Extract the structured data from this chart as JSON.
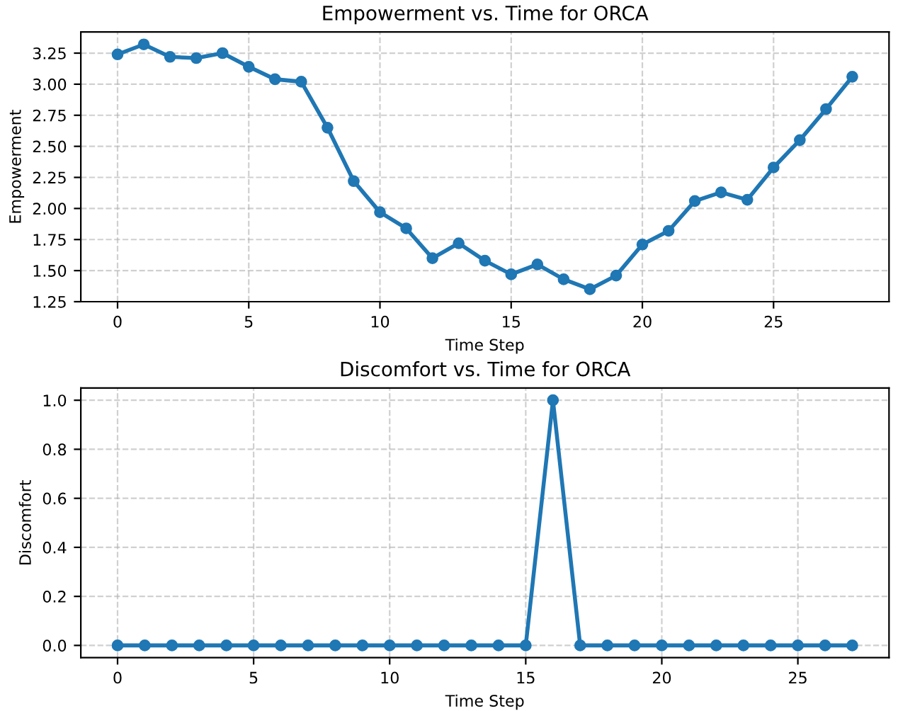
{
  "chart_data": [
    {
      "type": "line",
      "title": "Empowerment vs. Time for ORCA",
      "xlabel": "Time Step",
      "ylabel": "Empowerment",
      "x": [
        0,
        1,
        2,
        3,
        4,
        5,
        6,
        7,
        8,
        9,
        10,
        11,
        12,
        13,
        14,
        15,
        16,
        17,
        18,
        19,
        20,
        21,
        22,
        23,
        24,
        25,
        26,
        27,
        28
      ],
      "series": [
        {
          "color": "#1f77b4",
          "values": [
            3.24,
            3.32,
            3.22,
            3.21,
            3.25,
            3.14,
            3.04,
            3.02,
            2.65,
            2.22,
            1.97,
            1.84,
            1.6,
            1.72,
            1.58,
            1.47,
            1.55,
            1.43,
            1.35,
            1.46,
            1.71,
            1.82,
            2.06,
            2.13,
            2.07,
            2.33,
            2.55,
            2.8,
            3.06
          ]
        }
      ],
      "xlim": [
        -1.4,
        29.4
      ],
      "ylim": [
        1.25,
        3.42
      ],
      "xticks": [
        0,
        5,
        10,
        15,
        20,
        25
      ],
      "yticks": [
        {
          "value": 1.25,
          "label": "1.25"
        },
        {
          "value": 1.5,
          "label": "1.50"
        },
        {
          "value": 1.75,
          "label": "1.75"
        },
        {
          "value": 2.0,
          "label": "2.00"
        },
        {
          "value": 2.25,
          "label": "2.25"
        },
        {
          "value": 2.5,
          "label": "2.50"
        },
        {
          "value": 2.75,
          "label": "2.75"
        },
        {
          "value": 3.0,
          "label": "3.00"
        },
        {
          "value": 3.25,
          "label": "3.25"
        }
      ],
      "grid": true,
      "marker": "circle",
      "line_style": "solid"
    },
    {
      "type": "line",
      "title": "Discomfort vs. Time for ORCA",
      "xlabel": "Time Step",
      "ylabel": "Discomfort",
      "x": [
        0,
        1,
        2,
        3,
        4,
        5,
        6,
        7,
        8,
        9,
        10,
        11,
        12,
        13,
        14,
        15,
        16,
        17,
        18,
        19,
        20,
        21,
        22,
        23,
        24,
        25,
        26,
        27
      ],
      "series": [
        {
          "color": "#1f77b4",
          "values": [
            0,
            0,
            0,
            0,
            0,
            0,
            0,
            0,
            0,
            0,
            0,
            0,
            0,
            0,
            0,
            0,
            1,
            0,
            0,
            0,
            0,
            0,
            0,
            0,
            0,
            0,
            0,
            0
          ]
        }
      ],
      "xlim": [
        -1.35,
        28.35
      ],
      "ylim": [
        -0.05,
        1.05
      ],
      "xticks": [
        0,
        5,
        10,
        15,
        20,
        25
      ],
      "yticks": [
        {
          "value": 0,
          "label": "0.0"
        },
        {
          "value": 0.2,
          "label": "0.2"
        },
        {
          "value": 0.4,
          "label": "0.4"
        },
        {
          "value": 0.6,
          "label": "0.6"
        },
        {
          "value": 0.8,
          "label": "0.8"
        },
        {
          "value": 1.0,
          "label": "1.0"
        }
      ],
      "grid": true,
      "marker": "circle",
      "line_style": "solid"
    }
  ]
}
